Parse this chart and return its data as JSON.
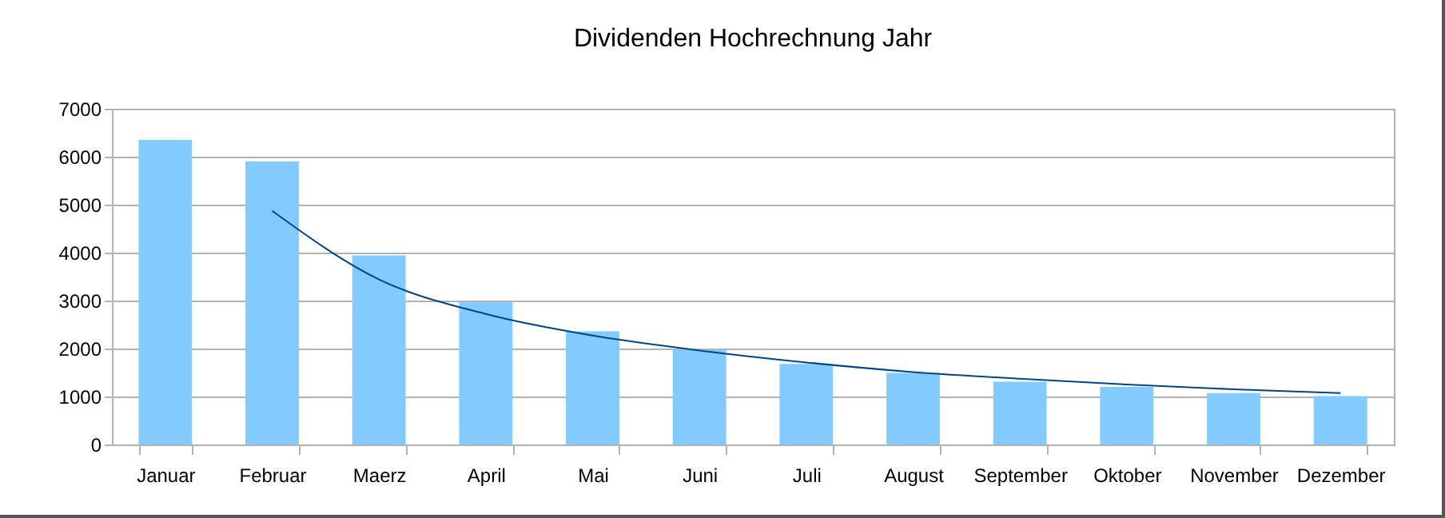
{
  "chart_data": {
    "type": "bar",
    "title": "Dividenden Hochrechnung Jahr",
    "categories": [
      "Januar",
      "Februar",
      "Maerz",
      "April",
      "Mai",
      "Juni",
      "Juli",
      "August",
      "September",
      "Oktober",
      "November",
      "Dezember"
    ],
    "series": [
      {
        "color": "#83caff",
        "values": [
          6350,
          5900,
          3940,
          2970,
          2360,
          1970,
          1680,
          1490,
          1310,
          1200,
          1070,
          1010
        ]
      },
      {
        "type": "line",
        "color": "#004586",
        "values": [
          null,
          4870,
          3440,
          2720,
          2270,
          1960,
          1710,
          1510,
          1370,
          1250,
          1150,
          1070
        ]
      }
    ],
    "ylim": [
      0,
      7000
    ],
    "yticks": [
      0,
      1000,
      2000,
      3000,
      4000,
      5000,
      6000,
      7000
    ],
    "grid": "y"
  }
}
